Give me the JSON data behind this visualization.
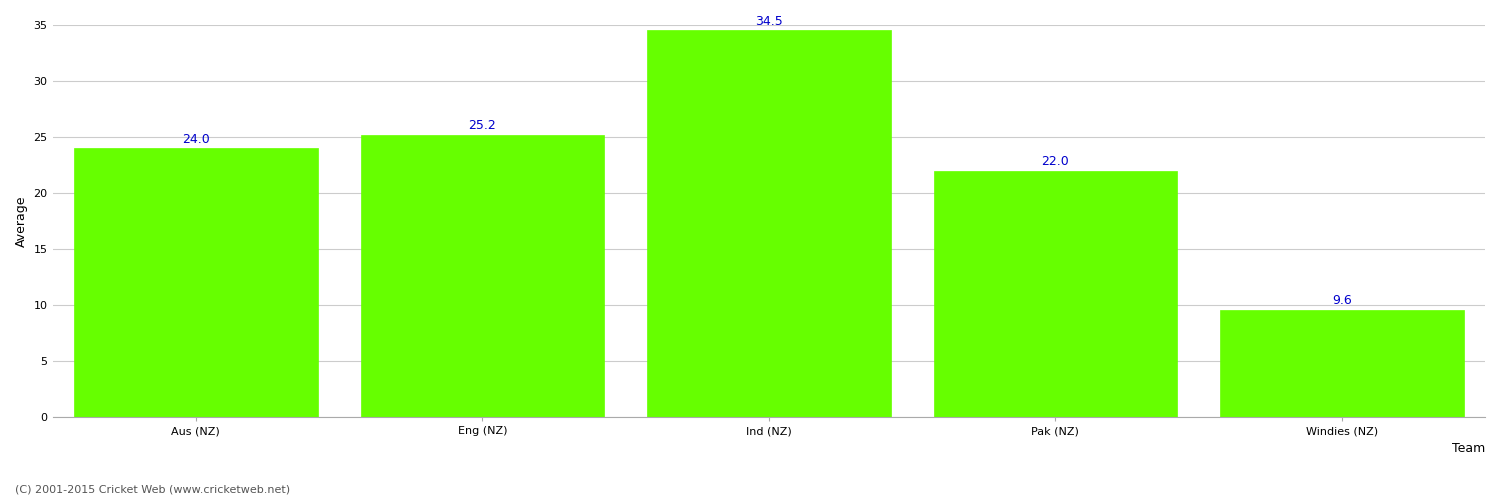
{
  "categories": [
    "Aus (NZ)",
    "Eng (NZ)",
    "Ind (NZ)",
    "Pak (NZ)",
    "Windies (NZ)"
  ],
  "values": [
    24.0,
    25.2,
    34.5,
    22.0,
    9.6
  ],
  "bar_color": "#66ff00",
  "bar_edge_color": "#66ff00",
  "ylabel": "Average",
  "xlabel": "Team",
  "ylim": [
    0,
    35
  ],
  "yticks": [
    0,
    5,
    10,
    15,
    20,
    25,
    30,
    35
  ],
  "label_color": "#0000cc",
  "label_fontsize": 9,
  "axis_fontsize": 9,
  "tick_fontsize": 8,
  "grid_color": "#cccccc",
  "background_color": "#ffffff",
  "footer_text": "(C) 2001-2015 Cricket Web (www.cricketweb.net)",
  "footer_fontsize": 8,
  "footer_color": "#555555",
  "bar_width": 0.85
}
